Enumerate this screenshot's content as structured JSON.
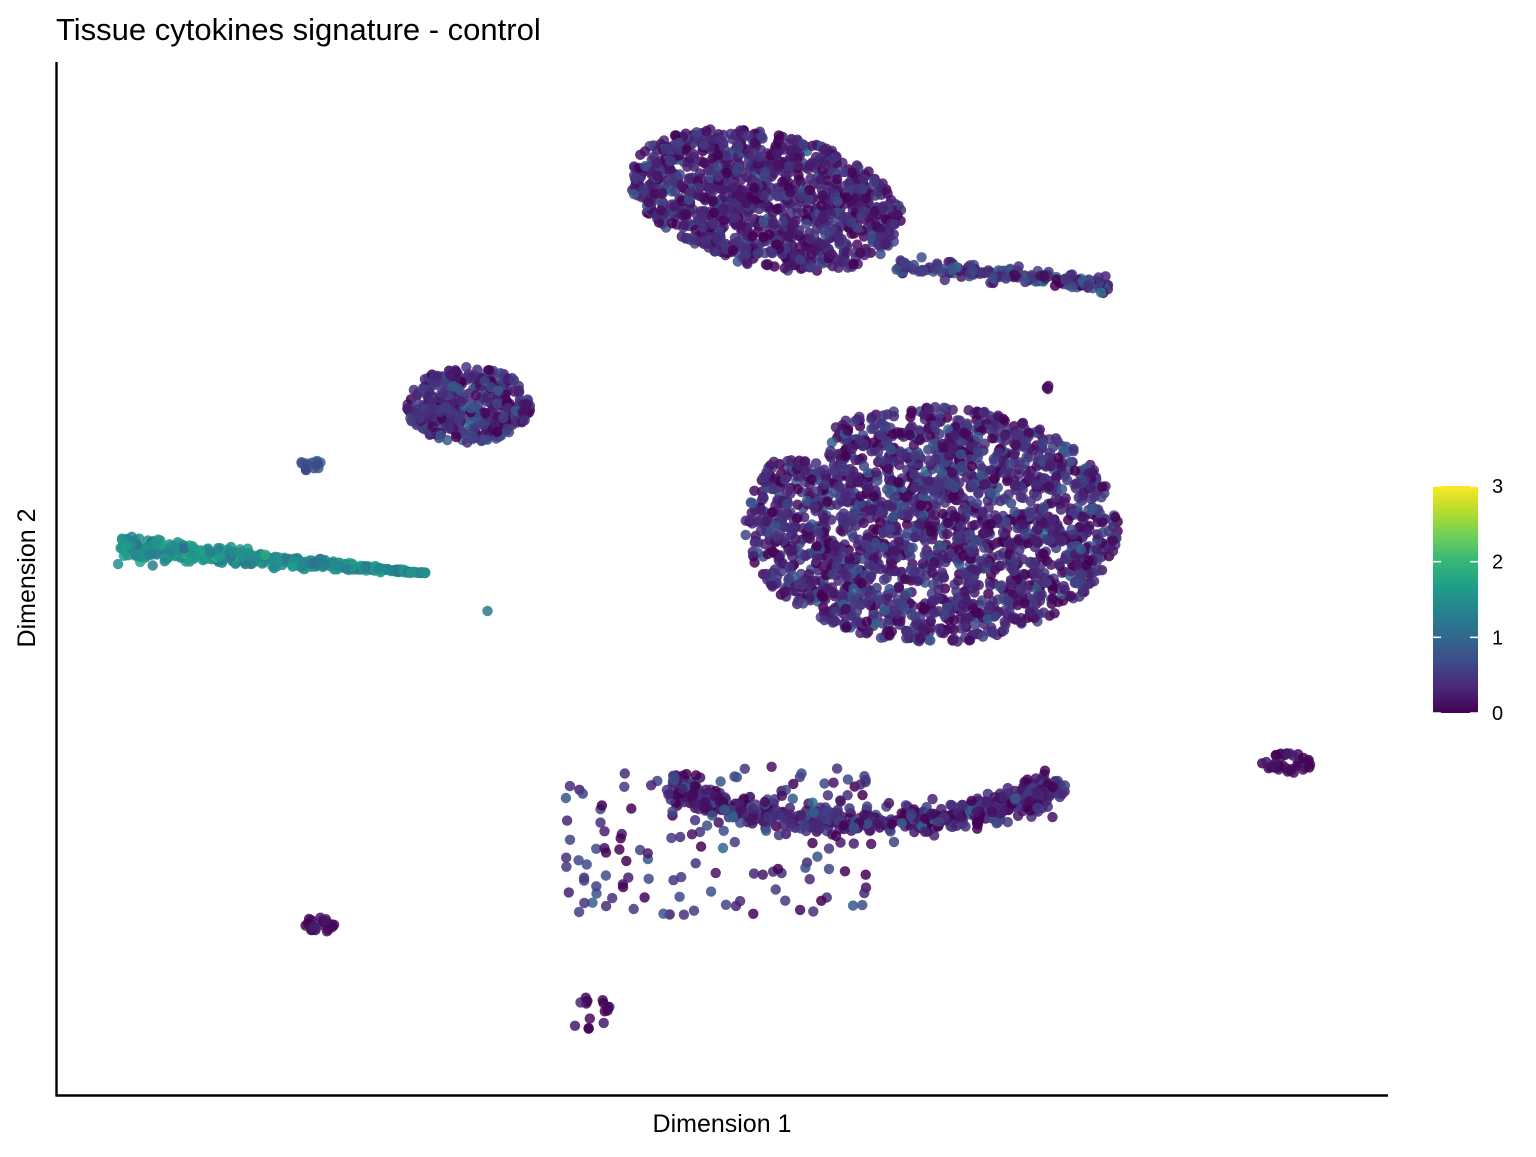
{
  "chart_data": {
    "type": "scatter",
    "title": "Tissue cytokines signature - control",
    "xlabel": "Dimension 1",
    "ylabel": "Dimension 2",
    "xlim": [
      0,
      100
    ],
    "ylim": [
      0,
      100
    ],
    "axis_ticks": false,
    "grid": false,
    "legend": {
      "type": "colorbar",
      "placement": "right",
      "min": 0,
      "max": 3,
      "tick_labels": [
        "0",
        "1",
        "2",
        "3"
      ],
      "palette": [
        "#440154",
        "#482878",
        "#3E4A89",
        "#31688E",
        "#26828E",
        "#1F9E89",
        "#35B779",
        "#6DCD59",
        "#B4DE2C",
        "#FDE725"
      ]
    },
    "clusters": [
      {
        "label": "top",
        "cx": 53.4,
        "cy": 88.0,
        "rx": 10.5,
        "ry": 6.8,
        "n": 1150,
        "mean": 0.28,
        "sd": 0.22,
        "shape": "top"
      },
      {
        "label": "top-right-arm",
        "cx": 71.5,
        "cy": 80.5,
        "rx": 8.2,
        "ry": 1.5,
        "n": 170,
        "mean": 0.45,
        "sd": 0.28,
        "shape": "arm",
        "angle": -0.12
      },
      {
        "label": "upper-left",
        "cx": 30.5,
        "cy": 67.5,
        "rx": 4.8,
        "ry": 3.8,
        "n": 380,
        "mean": 0.35,
        "sd": 0.25,
        "shape": "blob"
      },
      {
        "label": "center-right",
        "cx": 66.0,
        "cy": 55.5,
        "rx": 14.3,
        "ry": 11.8,
        "n": 2100,
        "mean": 0.32,
        "sd": 0.25,
        "shape": "heart"
      },
      {
        "label": "left-streak",
        "cx": 15.5,
        "cy": 52.0,
        "rx": 11.8,
        "ry": 1.5,
        "n": 520,
        "mean": 1.45,
        "sd": 0.18,
        "shape": "streak",
        "angle": -0.11
      },
      {
        "label": "small-left",
        "cx": 18.5,
        "cy": 61.5,
        "rx": 0.9,
        "ry": 0.6,
        "n": 14,
        "mean": 0.8,
        "sd": 0.15,
        "shape": "blob"
      },
      {
        "label": "bottom-arc",
        "cx": 61.0,
        "cy": 28.5,
        "rx": 14.5,
        "ry": 5.5,
        "n": 620,
        "mean": 0.3,
        "sd": 0.22,
        "shape": "arc"
      },
      {
        "label": "bottom-sparse",
        "cx": 50.0,
        "cy": 24.0,
        "rx": 12.0,
        "ry": 7.5,
        "n": 150,
        "mean": 0.4,
        "sd": 0.3,
        "shape": "sparse"
      },
      {
        "label": "bottom-left",
        "cx": 19.2,
        "cy": 15.5,
        "rx": 1.2,
        "ry": 0.9,
        "n": 22,
        "mean": 0.1,
        "sd": 0.1,
        "shape": "blob"
      },
      {
        "label": "bottom-center",
        "cx": 40.0,
        "cy": 6.5,
        "rx": 1.6,
        "ry": 2.0,
        "n": 16,
        "mean": 0.1,
        "sd": 0.1,
        "shape": "blob"
      },
      {
        "label": "far-right",
        "cx": 93.3,
        "cy": 31.7,
        "rx": 2.0,
        "ry": 1.0,
        "n": 40,
        "mean": 0.1,
        "sd": 0.1,
        "shape": "blob"
      },
      {
        "label": "lone-1",
        "cx": 74.8,
        "cy": 69.3,
        "rx": 0.2,
        "ry": 0.5,
        "n": 3,
        "mean": 0.1,
        "sd": 0.05,
        "shape": "blob"
      },
      {
        "label": "lone-2",
        "cx": 32.0,
        "cy": 47.0,
        "rx": 0.2,
        "ry": 0.2,
        "n": 1,
        "mean": 1.3,
        "sd": 0.05,
        "shape": "blob"
      }
    ]
  }
}
